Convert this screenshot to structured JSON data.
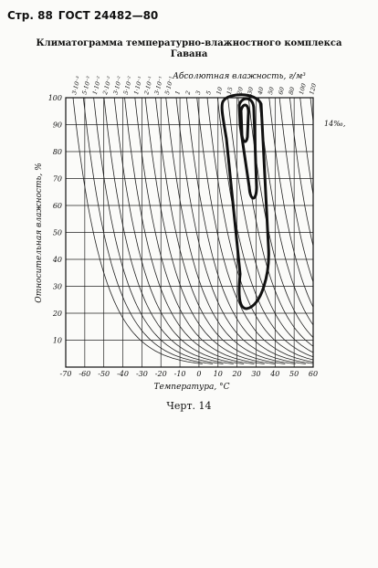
{
  "header": {
    "page": "Стр. 88",
    "standard": "ГОСТ 24482—80"
  },
  "title": [
    "Климатограмма температурно-влажностного комплекса",
    "Гавана"
  ],
  "figure": {
    "top_axis_label": "Абсолютная влажность, г/м³",
    "top_ticks": [
      "3·10⁻³",
      "5·10⁻³",
      "1·10⁻²",
      "2·10⁻²",
      "3·10⁻²",
      "5·10⁻²",
      "1·10⁻¹",
      "2·10⁻¹",
      "3·10⁻¹",
      "5·10⁻¹",
      "1",
      "2",
      "3",
      "5",
      "10",
      "15",
      "20",
      "30",
      "40",
      "50",
      "60",
      "80",
      "100",
      "120"
    ],
    "y_axis_label": "Относительная влажность, %",
    "y_ticks": [
      "100",
      "90",
      "80",
      "70",
      "60",
      "50",
      "40",
      "30",
      "20",
      "10"
    ],
    "x_axis_label": "Температура, °С",
    "x_ticks": [
      "-70",
      "-60",
      "-50",
      "-40",
      "-30",
      "-20",
      "-10",
      "0",
      "10",
      "20",
      "30",
      "40",
      "50",
      "60"
    ],
    "note": "14‰,"
  },
  "caption": "Черт. 14"
}
